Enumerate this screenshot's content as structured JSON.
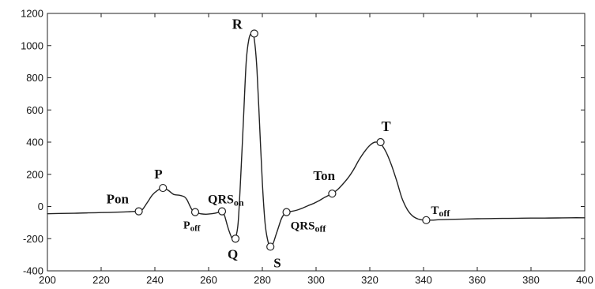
{
  "chart_data": {
    "type": "line",
    "title": "",
    "xlabel": "",
    "ylabel": "",
    "xlim": [
      200,
      400
    ],
    "ylim": [
      -400,
      1200
    ],
    "x_ticks": [
      200,
      220,
      240,
      260,
      280,
      300,
      320,
      340,
      360,
      380,
      400
    ],
    "y_ticks": [
      -400,
      -200,
      0,
      200,
      400,
      600,
      800,
      1000,
      1200
    ],
    "grid": false,
    "line_color": "#222222",
    "series": [
      {
        "x": [
          200,
          205,
          210,
          215,
          220,
          225,
          230,
          233,
          235,
          237,
          239,
          241,
          243,
          245,
          247,
          249,
          251,
          252,
          253,
          254,
          255,
          257,
          259,
          261,
          263,
          265,
          266,
          267,
          268,
          269,
          270,
          271,
          272,
          273,
          274,
          275,
          276,
          277,
          278,
          279,
          280,
          281,
          282,
          283,
          284,
          285,
          286,
          287,
          288,
          289,
          291,
          293,
          295,
          297,
          299,
          301,
          303,
          305,
          306,
          308,
          310,
          312,
          314,
          316,
          318,
          320,
          322,
          324,
          326,
          328,
          330,
          332,
          334,
          336,
          338,
          340,
          341,
          343,
          346,
          350,
          355,
          360,
          365,
          370,
          375,
          380,
          385,
          390,
          395,
          400
        ],
        "y": [
          -45,
          -43,
          -42,
          -40,
          -38,
          -36,
          -33,
          -30,
          -25,
          20,
          70,
          100,
          115,
          100,
          75,
          70,
          60,
          40,
          5,
          -25,
          -35,
          -45,
          -48,
          -45,
          -40,
          -30,
          -60,
          -120,
          -170,
          -205,
          -195,
          -100,
          200,
          550,
          900,
          1040,
          1075,
          1040,
          850,
          500,
          150,
          -100,
          -210,
          -250,
          -230,
          -180,
          -130,
          -80,
          -50,
          -35,
          -30,
          -22,
          -10,
          5,
          18,
          35,
          55,
          72,
          80,
          105,
          140,
          180,
          230,
          290,
          340,
          380,
          400,
          390,
          340,
          260,
          160,
          50,
          -20,
          -60,
          -78,
          -85,
          -85,
          -85,
          -82,
          -80,
          -78,
          -76,
          -75,
          -74,
          -73,
          -72,
          -72,
          -71,
          -70,
          -70
        ]
      }
    ],
    "points": [
      {
        "label": "Pon",
        "sub": "",
        "x": 234,
        "y": -30
      },
      {
        "label": "P",
        "sub": "",
        "x": 243,
        "y": 115
      },
      {
        "label": "P",
        "sub": "off",
        "x": 255,
        "y": -35
      },
      {
        "label": "QRS",
        "sub": "on",
        "x": 265,
        "y": -30
      },
      {
        "label": "Q",
        "sub": "",
        "x": 270,
        "y": -200
      },
      {
        "label": "R",
        "sub": "",
        "x": 277,
        "y": 1075
      },
      {
        "label": "S",
        "sub": "",
        "x": 283,
        "y": -250
      },
      {
        "label": "QRS",
        "sub": "off",
        "x": 289,
        "y": -35
      },
      {
        "label": "Ton",
        "sub": "",
        "x": 306,
        "y": 80
      },
      {
        "label": "T",
        "sub": "",
        "x": 324,
        "y": 400
      },
      {
        "label": "T",
        "sub": "off",
        "x": 341,
        "y": -85
      }
    ]
  }
}
